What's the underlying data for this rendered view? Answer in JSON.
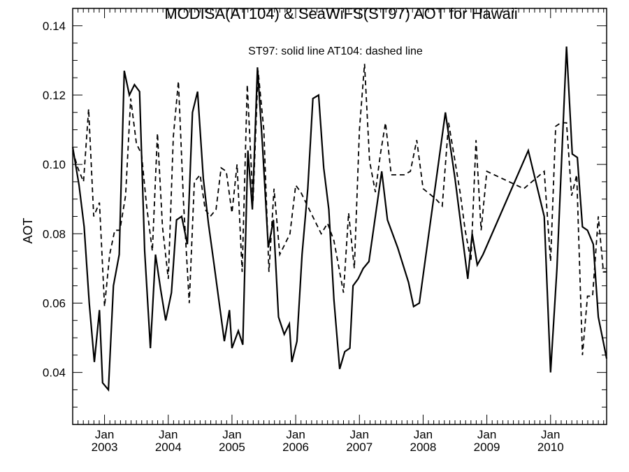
{
  "chart_data": {
    "type": "line",
    "title": "MODISA(AT104) & SeaWiFS(ST97)  AOT for Hawaii",
    "xlabel": "",
    "ylabel": "AOT",
    "annotation": "ST97: solid line   AT104: dashed line",
    "ylim": [
      0.025,
      0.145
    ],
    "xlim": [
      2002.5,
      2010.88
    ],
    "y_ticks": [
      0.04,
      0.06,
      0.08,
      0.1,
      0.12,
      0.14
    ],
    "y_tick_labels": [
      "0.04",
      "0.06",
      "0.08",
      "0.10",
      "0.12",
      "0.14"
    ],
    "x_ticks": [
      {
        "x": 2003,
        "month": "Jan",
        "year": "2003"
      },
      {
        "x": 2004,
        "month": "Jan",
        "year": "2004"
      },
      {
        "x": 2005,
        "month": "Jan",
        "year": "2005"
      },
      {
        "x": 2006,
        "month": "Jan",
        "year": "2006"
      },
      {
        "x": 2007,
        "month": "Jan",
        "year": "2007"
      },
      {
        "x": 2008,
        "month": "Jan",
        "year": "2008"
      },
      {
        "x": 2009,
        "month": "Jan",
        "year": "2009"
      },
      {
        "x": 2010,
        "month": "Jan",
        "year": "2010"
      }
    ],
    "grid": false,
    "series": [
      {
        "name": "ST97",
        "style": "solid",
        "color": "#000000",
        "points": [
          [
            2002.5,
            0.105
          ],
          [
            2002.6,
            0.094
          ],
          [
            2002.68,
            0.082
          ],
          [
            2002.76,
            0.06
          ],
          [
            2002.84,
            0.043
          ],
          [
            2002.92,
            0.058
          ],
          [
            2002.97,
            0.037
          ],
          [
            2003.06,
            0.035
          ],
          [
            2003.14,
            0.065
          ],
          [
            2003.23,
            0.074
          ],
          [
            2003.31,
            0.127
          ],
          [
            2003.39,
            0.12
          ],
          [
            2003.47,
            0.123
          ],
          [
            2003.55,
            0.121
          ],
          [
            2003.63,
            0.075
          ],
          [
            2003.72,
            0.047
          ],
          [
            2003.8,
            0.074
          ],
          [
            2003.88,
            0.064
          ],
          [
            2003.96,
            0.055
          ],
          [
            2004.05,
            0.063
          ],
          [
            2004.13,
            0.084
          ],
          [
            2004.21,
            0.085
          ],
          [
            2004.3,
            0.077
          ],
          [
            2004.38,
            0.115
          ],
          [
            2004.46,
            0.121
          ],
          [
            2004.55,
            0.096
          ],
          [
            2004.63,
            0.083
          ],
          [
            2004.72,
            0.071
          ],
          [
            2004.8,
            0.06
          ],
          [
            2004.88,
            0.049
          ],
          [
            2004.96,
            0.058
          ],
          [
            2005.0,
            0.047
          ],
          [
            2005.1,
            0.052
          ],
          [
            2005.17,
            0.048
          ],
          [
            2005.25,
            0.104
          ],
          [
            2005.32,
            0.087
          ],
          [
            2005.4,
            0.128
          ],
          [
            2005.48,
            0.105
          ],
          [
            2005.57,
            0.076
          ],
          [
            2005.65,
            0.084
          ],
          [
            2005.73,
            0.056
          ],
          [
            2005.82,
            0.051
          ],
          [
            2005.9,
            0.054
          ],
          [
            2005.94,
            0.043
          ],
          [
            2006.02,
            0.049
          ],
          [
            2006.1,
            0.074
          ],
          [
            2006.19,
            0.093
          ],
          [
            2006.27,
            0.119
          ],
          [
            2006.36,
            0.12
          ],
          [
            2006.44,
            0.099
          ],
          [
            2006.52,
            0.087
          ],
          [
            2006.6,
            0.061
          ],
          [
            2006.69,
            0.041
          ],
          [
            2006.77,
            0.046
          ],
          [
            2006.85,
            0.047
          ],
          [
            2006.9,
            0.065
          ],
          [
            2006.98,
            0.067
          ],
          [
            2007.06,
            0.07
          ],
          [
            2007.15,
            0.072
          ],
          [
            2007.35,
            0.098
          ],
          [
            2007.44,
            0.084
          ],
          [
            2007.6,
            0.076
          ],
          [
            2007.77,
            0.066
          ],
          [
            2007.85,
            0.059
          ],
          [
            2007.94,
            0.06
          ],
          [
            2008.35,
            0.115
          ],
          [
            2008.5,
            0.096
          ],
          [
            2008.7,
            0.067
          ],
          [
            2008.77,
            0.08
          ],
          [
            2008.85,
            0.071
          ],
          [
            2008.94,
            0.074
          ],
          [
            2009.65,
            0.104
          ],
          [
            2009.9,
            0.085
          ],
          [
            2010.0,
            0.04
          ],
          [
            2010.1,
            0.07
          ],
          [
            2010.25,
            0.134
          ],
          [
            2010.34,
            0.103
          ],
          [
            2010.42,
            0.102
          ],
          [
            2010.5,
            0.082
          ],
          [
            2010.58,
            0.081
          ],
          [
            2010.67,
            0.077
          ],
          [
            2010.75,
            0.056
          ],
          [
            2010.88,
            0.044
          ]
        ]
      },
      {
        "name": "AT104",
        "style": "dashed",
        "color": "#000000",
        "points": [
          [
            2002.5,
            0.104
          ],
          [
            2002.58,
            0.099
          ],
          [
            2002.67,
            0.095
          ],
          [
            2002.75,
            0.116
          ],
          [
            2002.83,
            0.085
          ],
          [
            2002.92,
            0.089
          ],
          [
            2003.0,
            0.059
          ],
          [
            2003.08,
            0.074
          ],
          [
            2003.16,
            0.081
          ],
          [
            2003.24,
            0.081
          ],
          [
            2003.33,
            0.091
          ],
          [
            2003.41,
            0.119
          ],
          [
            2003.5,
            0.106
          ],
          [
            2003.58,
            0.103
          ],
          [
            2003.66,
            0.088
          ],
          [
            2003.75,
            0.075
          ],
          [
            2003.83,
            0.109
          ],
          [
            2003.91,
            0.082
          ],
          [
            2004.0,
            0.067
          ],
          [
            2004.08,
            0.108
          ],
          [
            2004.16,
            0.124
          ],
          [
            2004.24,
            0.089
          ],
          [
            2004.33,
            0.06
          ],
          [
            2004.41,
            0.095
          ],
          [
            2004.5,
            0.097
          ],
          [
            2004.58,
            0.087
          ],
          [
            2004.66,
            0.085
          ],
          [
            2004.75,
            0.087
          ],
          [
            2004.83,
            0.099
          ],
          [
            2004.91,
            0.098
          ],
          [
            2005.0,
            0.086
          ],
          [
            2005.08,
            0.1
          ],
          [
            2005.16,
            0.069
          ],
          [
            2005.24,
            0.123
          ],
          [
            2005.33,
            0.089
          ],
          [
            2005.41,
            0.127
          ],
          [
            2005.5,
            0.11
          ],
          [
            2005.58,
            0.069
          ],
          [
            2005.66,
            0.093
          ],
          [
            2005.75,
            0.074
          ],
          [
            2005.83,
            0.077
          ],
          [
            2005.91,
            0.08
          ],
          [
            2006.0,
            0.094
          ],
          [
            2006.08,
            0.092
          ],
          [
            2006.4,
            0.08
          ],
          [
            2006.5,
            0.083
          ],
          [
            2006.6,
            0.078
          ],
          [
            2006.75,
            0.063
          ],
          [
            2006.83,
            0.086
          ],
          [
            2006.92,
            0.07
          ],
          [
            2007.0,
            0.11
          ],
          [
            2007.08,
            0.129
          ],
          [
            2007.16,
            0.101
          ],
          [
            2007.25,
            0.092
          ],
          [
            2007.33,
            0.103
          ],
          [
            2007.41,
            0.112
          ],
          [
            2007.5,
            0.097
          ],
          [
            2007.7,
            0.097
          ],
          [
            2007.8,
            0.098
          ],
          [
            2007.9,
            0.107
          ],
          [
            2008.0,
            0.093
          ],
          [
            2008.2,
            0.09
          ],
          [
            2008.3,
            0.088
          ],
          [
            2008.4,
            0.112
          ],
          [
            2008.5,
            0.101
          ],
          [
            2008.58,
            0.092
          ],
          [
            2008.66,
            0.081
          ],
          [
            2008.75,
            0.072
          ],
          [
            2008.83,
            0.107
          ],
          [
            2008.91,
            0.081
          ],
          [
            2009.0,
            0.098
          ],
          [
            2009.58,
            0.093
          ],
          [
            2009.9,
            0.098
          ],
          [
            2010.0,
            0.072
          ],
          [
            2010.08,
            0.111
          ],
          [
            2010.16,
            0.112
          ],
          [
            2010.25,
            0.112
          ],
          [
            2010.33,
            0.091
          ],
          [
            2010.41,
            0.097
          ],
          [
            2010.5,
            0.045
          ],
          [
            2010.58,
            0.062
          ],
          [
            2010.66,
            0.062
          ],
          [
            2010.75,
            0.085
          ],
          [
            2010.83,
            0.069
          ],
          [
            2010.88,
            0.069
          ]
        ]
      }
    ]
  }
}
